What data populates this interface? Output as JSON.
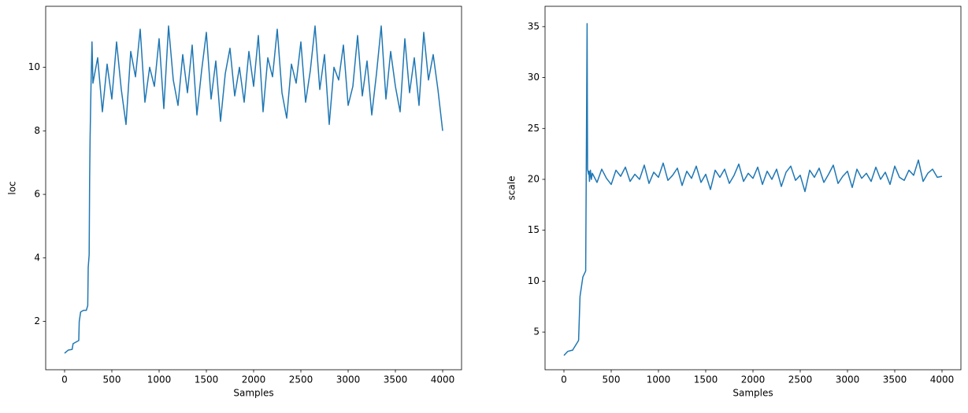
{
  "chart_data": [
    {
      "type": "line",
      "xlabel": "Samples",
      "ylabel": "loc",
      "color": "#1f77b4",
      "xlim": [
        -200,
        4200
      ],
      "ylim": [
        0.48,
        11.92
      ],
      "xticks": [
        0,
        500,
        1000,
        1500,
        2000,
        2500,
        3000,
        3500,
        4000
      ],
      "yticks": [
        2,
        4,
        6,
        8,
        10
      ],
      "x": [
        0,
        20,
        40,
        80,
        90,
        150,
        155,
        170,
        200,
        230,
        245,
        250,
        260,
        265,
        270,
        280,
        290,
        300,
        350,
        400,
        450,
        500,
        550,
        600,
        650,
        700,
        750,
        800,
        850,
        900,
        950,
        1000,
        1050,
        1100,
        1150,
        1200,
        1250,
        1300,
        1350,
        1400,
        1450,
        1500,
        1550,
        1600,
        1650,
        1700,
        1750,
        1800,
        1850,
        1900,
        1950,
        2000,
        2050,
        2100,
        2150,
        2200,
        2250,
        2300,
        2350,
        2400,
        2450,
        2500,
        2550,
        2600,
        2650,
        2700,
        2750,
        2800,
        2850,
        2900,
        2950,
        3000,
        3050,
        3100,
        3150,
        3200,
        3250,
        3300,
        3350,
        3400,
        3450,
        3500,
        3550,
        3600,
        3650,
        3700,
        3750,
        3800,
        3850,
        3900,
        3950,
        4000
      ],
      "values": [
        1.0,
        1.05,
        1.1,
        1.12,
        1.3,
        1.4,
        2.0,
        2.3,
        2.35,
        2.35,
        2.5,
        3.7,
        4.1,
        6.5,
        7.8,
        9.5,
        10.8,
        9.5,
        10.3,
        8.6,
        10.1,
        9.0,
        10.8,
        9.3,
        8.2,
        10.5,
        9.7,
        11.2,
        8.9,
        10.0,
        9.4,
        10.9,
        8.7,
        11.3,
        9.6,
        8.8,
        10.4,
        9.2,
        10.7,
        8.5,
        9.9,
        11.1,
        9.0,
        10.2,
        8.3,
        9.8,
        10.6,
        9.1,
        10.0,
        8.9,
        10.5,
        9.4,
        11.0,
        8.6,
        10.3,
        9.7,
        11.2,
        9.2,
        8.4,
        10.1,
        9.5,
        10.8,
        8.9,
        9.9,
        11.3,
        9.3,
        10.4,
        8.2,
        10.0,
        9.6,
        10.7,
        8.8,
        9.4,
        11.0,
        9.1,
        10.2,
        8.5,
        9.8,
        11.3,
        9.0,
        10.5,
        9.4,
        8.6,
        10.9,
        9.2,
        10.3,
        8.8,
        11.1,
        9.6,
        10.4,
        9.3,
        8.0
      ]
    },
    {
      "type": "line",
      "xlabel": "Samples",
      "ylabel": "scale",
      "color": "#1f77b4",
      "xlim": [
        -200,
        4200
      ],
      "ylim": [
        1.3,
        37.0
      ],
      "xticks": [
        0,
        500,
        1000,
        1500,
        2000,
        2500,
        3000,
        3500,
        4000
      ],
      "yticks": [
        5,
        10,
        15,
        20,
        25,
        30,
        35
      ],
      "x": [
        0,
        20,
        40,
        80,
        90,
        150,
        155,
        170,
        200,
        230,
        245,
        250,
        260,
        265,
        270,
        280,
        290,
        300,
        350,
        400,
        450,
        500,
        550,
        600,
        650,
        700,
        750,
        800,
        850,
        900,
        950,
        1000,
        1050,
        1100,
        1150,
        1200,
        1250,
        1300,
        1350,
        1400,
        1450,
        1500,
        1550,
        1600,
        1650,
        1700,
        1750,
        1800,
        1850,
        1900,
        1950,
        2000,
        2050,
        2100,
        2150,
        2200,
        2250,
        2300,
        2350,
        2400,
        2450,
        2500,
        2550,
        2600,
        2650,
        2700,
        2750,
        2800,
        2850,
        2900,
        2950,
        3000,
        3050,
        3100,
        3150,
        3200,
        3250,
        3300,
        3350,
        3400,
        3450,
        3500,
        3550,
        3600,
        3650,
        3700,
        3750,
        3800,
        3850,
        3900,
        3950,
        4000
      ],
      "values": [
        2.7,
        2.9,
        3.1,
        3.2,
        3.2,
        4.1,
        4.2,
        8.5,
        10.4,
        11.0,
        35.3,
        21.0,
        20.5,
        20.8,
        19.8,
        20.9,
        20.0,
        20.6,
        19.7,
        21.0,
        20.1,
        19.5,
        20.9,
        20.3,
        21.2,
        19.8,
        20.5,
        20.0,
        21.4,
        19.6,
        20.7,
        20.2,
        21.6,
        19.9,
        20.4,
        21.1,
        19.4,
        20.8,
        20.1,
        21.3,
        19.7,
        20.5,
        19.0,
        20.9,
        20.2,
        21.0,
        19.6,
        20.4,
        21.5,
        19.8,
        20.6,
        20.1,
        21.2,
        19.5,
        20.8,
        20.0,
        21.0,
        19.3,
        20.7,
        21.3,
        19.9,
        20.4,
        18.8,
        20.9,
        20.2,
        21.1,
        19.7,
        20.5,
        21.4,
        19.6,
        20.3,
        20.8,
        19.2,
        21.0,
        20.1,
        20.6,
        19.8,
        21.2,
        20.0,
        20.7,
        19.5,
        21.3,
        20.2,
        19.9,
        20.9,
        20.4,
        21.9,
        19.8,
        20.6,
        21.0,
        20.2,
        20.3
      ]
    }
  ]
}
